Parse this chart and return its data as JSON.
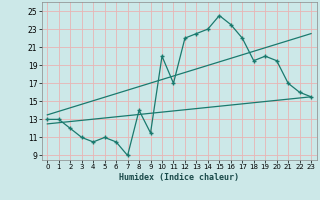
{
  "line1_x": [
    0,
    1,
    2,
    3,
    4,
    5,
    6,
    7,
    8,
    9,
    10,
    11,
    12,
    13,
    14,
    15,
    16,
    17,
    18,
    19,
    20,
    21,
    22,
    23
  ],
  "line1_y": [
    13,
    13,
    12,
    11,
    10.5,
    11,
    10.5,
    9,
    14,
    11.5,
    20,
    17,
    22,
    22.5,
    23,
    24.5,
    23.5,
    22,
    19.5,
    20,
    19.5,
    17,
    16,
    15.5
  ],
  "line2_x": [
    0,
    23
  ],
  "line2_y": [
    13.5,
    22.5
  ],
  "line3_x": [
    0,
    23
  ],
  "line3_y": [
    12.5,
    15.5
  ],
  "line_color": "#1a7a6e",
  "bg_color": "#cce8e8",
  "grid_color": "#e8b4b4",
  "xlabel": "Humidex (Indice chaleur)",
  "ylim": [
    8.5,
    26
  ],
  "xlim": [
    -0.5,
    23.5
  ],
  "yticks": [
    9,
    11,
    13,
    15,
    17,
    19,
    21,
    23,
    25
  ],
  "xticks": [
    0,
    1,
    2,
    3,
    4,
    5,
    6,
    7,
    8,
    9,
    10,
    11,
    12,
    13,
    14,
    15,
    16,
    17,
    18,
    19,
    20,
    21,
    22,
    23
  ]
}
